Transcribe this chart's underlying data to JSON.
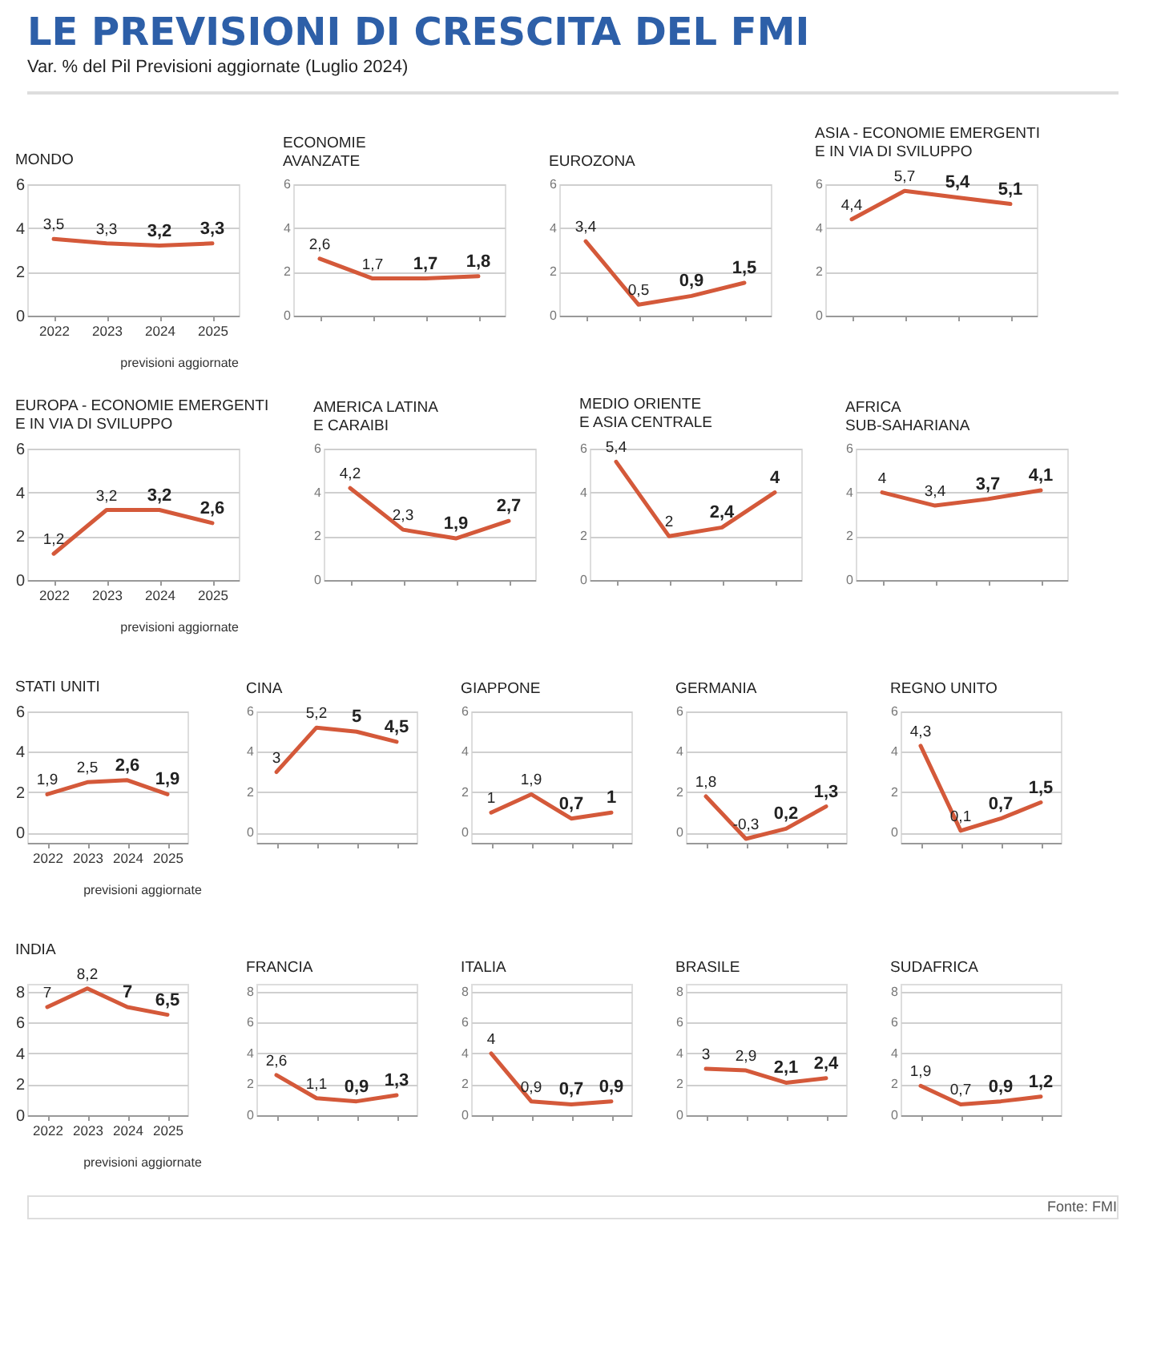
{
  "chart_data": [
    {
      "type": "other",
      "title": "LE PREVISIONI DI CRESCITA DEL FMI",
      "subtitle": "Var. % del Pil     Previsioni aggiornate (Luglio 2024)"
    },
    {
      "type": "line",
      "title": "MONDO",
      "categories": [
        "2022",
        "2023",
        "2024",
        "2025"
      ],
      "values": [
        3.5,
        3.3,
        3.2,
        3.3
      ],
      "value_labels": [
        "3,5",
        "3,3",
        "3,2",
        "3,3"
      ],
      "color": "#d4593a",
      "ylim": [
        0,
        6
      ],
      "yticks": [
        0,
        2,
        4,
        6
      ],
      "grid": "y",
      "annotations": [
        "previsioni aggiornate"
      ]
    },
    {
      "type": "line",
      "title": "ECONOMIE\nAVANZATE",
      "categories": [
        null,
        null,
        null,
        null
      ],
      "values": [
        2.6,
        1.7,
        1.7,
        1.8
      ],
      "value_labels": [
        "2,6",
        "1,7",
        "1,7",
        "1,8"
      ],
      "color": "#d4593a",
      "ylim": [
        0,
        6
      ],
      "yticks": [
        0,
        2,
        4,
        6
      ],
      "grid": "y",
      "tick_labels": "y"
    },
    {
      "type": "line",
      "title": "EUROZONA",
      "categories": [
        null,
        null,
        null,
        null
      ],
      "values": [
        3.4,
        0.5,
        0.9,
        1.5
      ],
      "value_labels": [
        "3,4",
        "0,5",
        "0,9",
        "1,5"
      ],
      "color": "#d4593a",
      "ylim": [
        0,
        6
      ],
      "yticks": [
        0,
        2,
        4,
        6
      ],
      "grid": "y",
      "tick_labels": "y"
    },
    {
      "type": "line",
      "title": "ASIA - ECONOMIE EMERGENTI\nE IN VIA DI SVILUPPO",
      "categories": [
        null,
        null,
        null,
        null
      ],
      "values": [
        4.4,
        5.7,
        5.4,
        5.1
      ],
      "value_labels": [
        "4,4",
        "5,7",
        "5,4",
        "5,1"
      ],
      "color": "#d4593a",
      "ylim": [
        0,
        6
      ],
      "yticks": [
        0,
        2,
        4,
        6
      ],
      "grid": "y",
      "tick_labels": "y"
    },
    {
      "type": "line",
      "title": "EUROPA - ECONOMIE EMERGENTI\nE IN VIA DI SVILUPPO",
      "categories": [
        "2022",
        "2023",
        "2024",
        "2025"
      ],
      "values": [
        1.2,
        3.2,
        3.2,
        2.6
      ],
      "value_labels": [
        "1,2",
        "3,2",
        "3,2",
        "2,6"
      ],
      "color": "#d4593a",
      "ylim": [
        0,
        6
      ],
      "yticks": [
        0,
        2,
        4,
        6
      ],
      "grid": "y",
      "annotations": [
        "previsioni aggiornate"
      ]
    },
    {
      "type": "line",
      "title": "AMERICA LATINA\nE CARAIBI",
      "categories": [
        null,
        null,
        null,
        null
      ],
      "values": [
        4.2,
        2.3,
        1.9,
        2.7
      ],
      "value_labels": [
        "4,2",
        "2,3",
        "1,9",
        "2,7"
      ],
      "color": "#d4593a",
      "ylim": [
        0,
        6
      ],
      "yticks": [
        0,
        2,
        4,
        6
      ],
      "grid": "y",
      "tick_labels": "y"
    },
    {
      "type": "line",
      "title": "MEDIO ORIENTE\nE ASIA CENTRALE",
      "categories": [
        null,
        null,
        null,
        null
      ],
      "values": [
        5.4,
        2,
        2.4,
        4
      ],
      "value_labels": [
        "5,4",
        "2",
        "2,4",
        "4"
      ],
      "color": "#d4593a",
      "ylim": [
        0,
        6
      ],
      "yticks": [
        0,
        2,
        4,
        6
      ],
      "grid": "y",
      "tick_labels": "y"
    },
    {
      "type": "line",
      "title": "AFRICA\nSUB-SAHARIANA",
      "categories": [
        null,
        null,
        null,
        null
      ],
      "values": [
        4,
        3.4,
        3.7,
        4.1
      ],
      "value_labels": [
        "4",
        "3,4",
        "3,7",
        "4,1"
      ],
      "color": "#d4593a",
      "ylim": [
        0,
        6
      ],
      "yticks": [
        0,
        2,
        4,
        6
      ],
      "grid": "y",
      "tick_labels": "y"
    },
    {
      "type": "line",
      "title": "STATI UNITI",
      "categories": [
        "2022",
        "2023",
        "2024",
        "2025"
      ],
      "values": [
        1.9,
        2.5,
        2.6,
        1.9
      ],
      "value_labels": [
        "1,9",
        "2,5",
        "2,6",
        "1,9"
      ],
      "color": "#d4593a",
      "ylim": [
        -0.5,
        6
      ],
      "yticks": [
        0,
        2,
        4,
        6
      ],
      "grid": "y",
      "annotations": [
        "previsioni aggiornate"
      ]
    },
    {
      "type": "line",
      "title": "CINA",
      "categories": [
        null,
        null,
        null,
        null
      ],
      "values": [
        3,
        5.2,
        5,
        4.5
      ],
      "value_labels": [
        "3",
        "5,2",
        "5",
        "4,5"
      ],
      "color": "#d4593a",
      "ylim": [
        -0.5,
        6
      ],
      "yticks": [
        0,
        2,
        4,
        6
      ],
      "grid": "y",
      "tick_labels": "y"
    },
    {
      "type": "line",
      "title": "GIAPPONE",
      "categories": [
        null,
        null,
        null,
        null
      ],
      "values": [
        1,
        1.9,
        0.7,
        1
      ],
      "value_labels": [
        "1",
        "1,9",
        "0,7",
        "1"
      ],
      "color": "#d4593a",
      "ylim": [
        -0.5,
        6
      ],
      "yticks": [
        0,
        2,
        4,
        6
      ],
      "grid": "y",
      "tick_labels": "y"
    },
    {
      "type": "line",
      "title": "GERMANIA",
      "categories": [
        null,
        null,
        null,
        null
      ],
      "values": [
        1.8,
        -0.3,
        0.2,
        1.3
      ],
      "value_labels": [
        "1,8",
        "-0,3",
        "0,2",
        "1,3"
      ],
      "color": "#d4593a",
      "ylim": [
        -0.5,
        6
      ],
      "yticks": [
        0,
        2,
        4,
        6
      ],
      "grid": "y",
      "tick_labels": "y"
    },
    {
      "type": "line",
      "title": "REGNO UNITO",
      "categories": [
        null,
        null,
        null,
        null
      ],
      "values": [
        4.3,
        0.1,
        0.7,
        1.5
      ],
      "value_labels": [
        "4,3",
        "0,1",
        "0,7",
        "1,5"
      ],
      "color": "#d4593a",
      "ylim": [
        -0.5,
        6
      ],
      "yticks": [
        0,
        2,
        4,
        6
      ],
      "grid": "y",
      "tick_labels": "y"
    },
    {
      "type": "line",
      "title": "INDIA",
      "categories": [
        "2022",
        "2023",
        "2024",
        "2025"
      ],
      "values": [
        7,
        8.2,
        7,
        6.5
      ],
      "value_labels": [
        "7",
        "8,2",
        "7",
        "6,5"
      ],
      "color": "#d4593a",
      "ylim": [
        0,
        8.5
      ],
      "yticks": [
        0,
        2,
        4,
        6,
        8
      ],
      "grid": "y",
      "annotations": [
        "previsioni aggiornate"
      ]
    },
    {
      "type": "line",
      "title": "FRANCIA",
      "categories": [
        null,
        null,
        null,
        null
      ],
      "values": [
        2.6,
        1.1,
        0.9,
        1.3
      ],
      "value_labels": [
        "2,6",
        "1,1",
        "0,9",
        "1,3"
      ],
      "color": "#d4593a",
      "ylim": [
        0,
        8.5
      ],
      "yticks": [
        0,
        2,
        4,
        6,
        8
      ],
      "grid": "y",
      "tick_labels": "y"
    },
    {
      "type": "line",
      "title": "ITALIA",
      "categories": [
        null,
        null,
        null,
        null
      ],
      "values": [
        4,
        0.9,
        0.7,
        0.9
      ],
      "value_labels": [
        "4",
        "0,9",
        "0,7",
        "0,9"
      ],
      "color": "#d4593a",
      "ylim": [
        0,
        8.5
      ],
      "yticks": [
        0,
        2,
        4,
        6,
        8
      ],
      "grid": "y",
      "tick_labels": "y"
    },
    {
      "type": "line",
      "title": "BRASILE",
      "categories": [
        null,
        null,
        null,
        null
      ],
      "values": [
        3,
        2.9,
        2.1,
        2.4
      ],
      "value_labels": [
        "3",
        "2,9",
        "2,1",
        "2,4"
      ],
      "color": "#d4593a",
      "ylim": [
        0,
        8.5
      ],
      "yticks": [
        0,
        2,
        4,
        6,
        8
      ],
      "grid": "y",
      "tick_labels": "y"
    },
    {
      "type": "line",
      "title": "SUDAFRICA",
      "categories": [
        null,
        null,
        null,
        null
      ],
      "values": [
        1.9,
        0.7,
        0.9,
        1.2
      ],
      "value_labels": [
        "1,9",
        "0,7",
        "0,9",
        "1,2"
      ],
      "color": "#d4593a",
      "ylim": [
        0,
        8.5
      ],
      "yticks": [
        0,
        2,
        4,
        6,
        8
      ],
      "grid": "y",
      "tick_labels": "y"
    },
    {
      "type": "other",
      "annotations": [
        "Fonte: FMI"
      ]
    }
  ]
}
